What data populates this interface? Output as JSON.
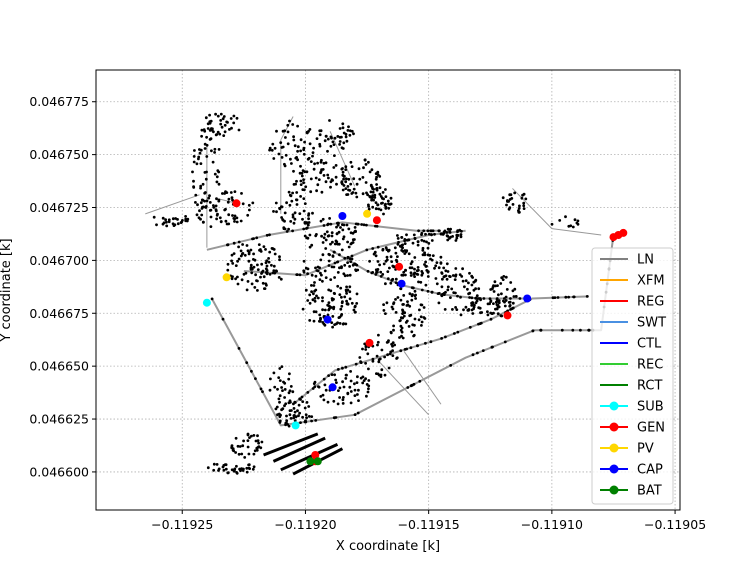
{
  "chart_data": {
    "type": "scatter",
    "xlabel": "X coordinate [k]",
    "ylabel": "Y coordinate [k]",
    "xlim": [
      -0.119285,
      -0.119048
    ],
    "ylim": [
      0.046582,
      0.04679
    ],
    "xticks": [
      -0.11925,
      -0.1192,
      -0.11915,
      -0.1191,
      -0.11905
    ],
    "xtick_labels": [
      "−0.11925",
      "−0.11920",
      "−0.11915",
      "−0.11910",
      "−0.11905"
    ],
    "yticks": [
      0.046775,
      0.04675,
      0.046725,
      0.0467,
      0.046675,
      0.04665,
      0.046625,
      0.0466
    ],
    "ytick_labels": [
      "0.046775",
      "0.046750",
      "0.046725",
      "0.046700",
      "0.046675",
      "0.046650",
      "0.046625",
      "0.046600"
    ],
    "grid": true,
    "legend_position": "right",
    "legend": [
      {
        "label": "LN",
        "color": "#808080",
        "marker": false
      },
      {
        "label": "XFM",
        "color": "#ffa500",
        "marker": false
      },
      {
        "label": "REG",
        "color": "#ff0000",
        "marker": false
      },
      {
        "label": "SWT",
        "color": "#4a90e2",
        "marker": false
      },
      {
        "label": "CTL",
        "color": "#0000ff",
        "marker": false
      },
      {
        "label": "REC",
        "color": "#32cd32",
        "marker": false
      },
      {
        "label": "RCT",
        "color": "#008000",
        "marker": false
      },
      {
        "label": "SUB",
        "color": "#00ffff",
        "marker": true
      },
      {
        "label": "GEN",
        "color": "#ff0000",
        "marker": true
      },
      {
        "label": "PV",
        "color": "#ffd700",
        "marker": true
      },
      {
        "label": "CAP",
        "color": "#0000ff",
        "marker": true
      },
      {
        "label": "BAT",
        "color": "#008000",
        "marker": true
      }
    ],
    "node_color": "#000000",
    "line_color": "#999999",
    "main_lines": [
      [
        [
          -0.119238,
          0.046682
        ],
        [
          -0.11921,
          0.046622
        ],
        [
          -0.11918,
          0.046627
        ],
        [
          -0.119135,
          0.046654
        ],
        [
          -0.119107,
          0.046667
        ],
        [
          -0.11908,
          0.046667
        ],
        [
          -0.119075,
          0.046712
        ]
      ],
      [
        [
          -0.119225,
          0.046695
        ],
        [
          -0.1192,
          0.046693
        ],
        [
          -0.119175,
          0.046705
        ],
        [
          -0.11915,
          0.046712
        ],
        [
          -0.119135,
          0.046714
        ]
      ],
      [
        [
          -0.119205,
          0.046632
        ],
        [
          -0.119188,
          0.046648
        ],
        [
          -0.119165,
          0.046656
        ],
        [
          -0.119145,
          0.046663
        ],
        [
          -0.119125,
          0.046672
        ],
        [
          -0.119108,
          0.046682
        ],
        [
          -0.119085,
          0.046683
        ]
      ],
      [
        [
          -0.11924,
          0.046705
        ],
        [
          -0.119215,
          0.046712
        ],
        [
          -0.119185,
          0.046718
        ],
        [
          -0.119155,
          0.046714
        ],
        [
          -0.119145,
          0.046714
        ]
      ],
      [
        [
          -0.11919,
          0.046705
        ],
        [
          -0.119175,
          0.046695
        ],
        [
          -0.11916,
          0.046688
        ],
        [
          -0.119145,
          0.046684
        ],
        [
          -0.11913,
          0.046682
        ],
        [
          -0.11911,
          0.046682
        ]
      ]
    ],
    "thin_lines": [
      [
        [
          -0.11924,
          0.046706
        ],
        [
          -0.11924,
          0.046755
        ]
      ],
      [
        [
          -0.119243,
          0.046731
        ],
        [
          -0.119265,
          0.046722
        ]
      ],
      [
        [
          -0.11917,
          0.046652
        ],
        [
          -0.11915,
          0.046627
        ]
      ],
      [
        [
          -0.11916,
          0.046657
        ],
        [
          -0.119145,
          0.046632
        ]
      ],
      [
        [
          -0.11921,
          0.046757
        ],
        [
          -0.11921,
          0.046722
        ]
      ],
      [
        [
          -0.119116,
          0.046734
        ],
        [
          -0.1191,
          0.046715
        ]
      ],
      [
        [
          -0.1191,
          0.046715
        ],
        [
          -0.11908,
          0.046712
        ]
      ],
      [
        [
          -0.11919,
          0.046761
        ],
        [
          -0.11918,
          0.046735
        ]
      ],
      [
        [
          -0.119235,
          0.046729
        ],
        [
          -0.119228,
          0.046727
        ]
      ],
      [
        [
          -0.119205,
          0.046768
        ],
        [
          -0.11921,
          0.046757
        ]
      ]
    ],
    "clusters": [
      [
        -0.11924,
        0.04674,
        6e-06,
        2.5e-05,
        75
      ],
      [
        -0.119234,
        0.046764,
        8e-06,
        6e-06,
        35
      ],
      [
        -0.11923,
        0.046725,
        9e-06,
        8e-06,
        45
      ],
      [
        -0.119255,
        0.046719,
        8e-06,
        3e-06,
        25
      ],
      [
        -0.11922,
        0.046697,
        1.2e-05,
        1.2e-05,
        90
      ],
      [
        -0.119205,
        0.046723,
        8e-06,
        1e-05,
        50
      ],
      [
        -0.119205,
        0.046755,
        1e-05,
        1.2e-05,
        50
      ],
      [
        -0.119188,
        0.046758,
        8e-06,
        9e-06,
        40
      ],
      [
        -0.119195,
        0.04674,
        1.2e-05,
        8e-06,
        55
      ],
      [
        -0.119178,
        0.046738,
        9e-06,
        1e-05,
        55
      ],
      [
        -0.11917,
        0.046728,
        5e-06,
        7e-06,
        45
      ],
      [
        -0.11919,
        0.046712,
        1.2e-05,
        8e-06,
        60
      ],
      [
        -0.11919,
        0.04668,
        1.2e-05,
        1.2e-05,
        100
      ],
      [
        -0.119165,
        0.046697,
        1e-05,
        1e-05,
        60
      ],
      [
        -0.11916,
        0.046675,
        9e-06,
        1.2e-05,
        70
      ],
      [
        -0.11915,
        0.046696,
        8e-06,
        8e-06,
        55
      ],
      [
        -0.119138,
        0.046685,
        9e-06,
        1.2e-05,
        60
      ],
      [
        -0.119125,
        0.046678,
        1e-05,
        5e-06,
        40
      ],
      [
        -0.11917,
        0.046655,
        8e-06,
        1e-05,
        45
      ],
      [
        -0.119185,
        0.04664,
        1.2e-05,
        8e-06,
        55
      ],
      [
        -0.119205,
        0.046628,
        8e-06,
        7e-06,
        50
      ],
      [
        -0.11921,
        0.04664,
        5e-06,
        1e-05,
        25
      ],
      [
        -0.119223,
        0.046612,
        7e-06,
        6e-06,
        35
      ],
      [
        -0.11923,
        0.046602,
        1e-05,
        3e-06,
        35
      ],
      [
        -0.119115,
        0.046728,
        5e-06,
        6e-06,
        25
      ],
      [
        -0.119095,
        0.046718,
        6e-06,
        3e-06,
        10
      ],
      [
        -0.11912,
        0.046685,
        6e-06,
        8e-06,
        30
      ],
      [
        -0.11914,
        0.046712,
        6e-06,
        3e-06,
        25
      ],
      [
        -0.11919,
        0.046697,
        1.2e-05,
        6e-06,
        45
      ],
      [
        -0.119155,
        0.046709,
        1e-05,
        5e-06,
        35
      ]
    ],
    "sub_bars": [
      [
        [
          -0.119217,
          0.046608
        ],
        [
          -0.119195,
          0.046618
        ]
      ],
      [
        [
          -0.119213,
          0.046605
        ],
        [
          -0.119192,
          0.046616
        ]
      ],
      [
        [
          -0.11921,
          0.046601
        ],
        [
          -0.119187,
          0.046613
        ]
      ],
      [
        [
          -0.119205,
          0.046599
        ],
        [
          -0.119185,
          0.046611
        ]
      ]
    ],
    "markers": {
      "SUB": [
        [
          -0.11924,
          0.04668
        ],
        [
          -0.119204,
          0.046622
        ]
      ],
      "GEN": [
        [
          -0.119228,
          0.046727
        ],
        [
          -0.119171,
          0.046719
        ],
        [
          -0.119162,
          0.046697
        ],
        [
          -0.119174,
          0.046661
        ],
        [
          -0.119118,
          0.046674
        ],
        [
          -0.119196,
          0.046608
        ],
        [
          -0.119196,
          0.046605
        ],
        [
          -0.119075,
          0.046711
        ],
        [
          -0.119073,
          0.046712
        ],
        [
          -0.119071,
          0.046713
        ]
      ],
      "PV": [
        [
          -0.119232,
          0.046692
        ],
        [
          -0.119175,
          0.046722
        ]
      ],
      "CAP": [
        [
          -0.119185,
          0.046721
        ],
        [
          -0.119161,
          0.046689
        ],
        [
          -0.119191,
          0.046672
        ],
        [
          -0.119189,
          0.04664
        ],
        [
          -0.11911,
          0.046682
        ]
      ],
      "BAT": [
        [
          -0.119198,
          0.046605
        ],
        [
          -0.119195,
          0.046605
        ]
      ]
    }
  }
}
